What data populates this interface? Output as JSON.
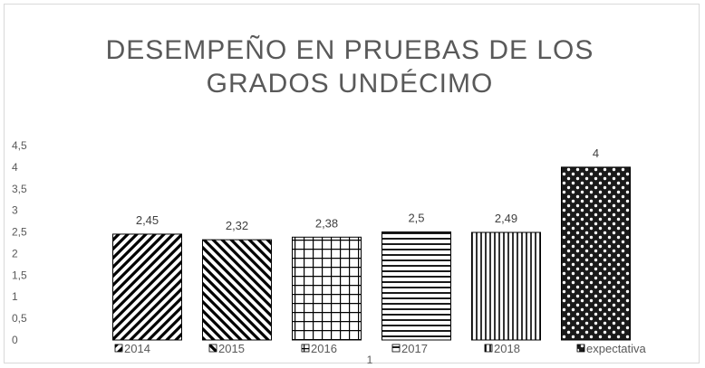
{
  "chart_data": {
    "type": "bar",
    "title_lines": [
      "DESEMPEÑO EN PRUEBAS DE LOS",
      "GRADOS UNDÉCIMO"
    ],
    "categories": [
      "1"
    ],
    "series": [
      {
        "name": "2014",
        "values": [
          2.45
        ],
        "label": "2,45",
        "pattern": "diag-up"
      },
      {
        "name": "2015",
        "values": [
          2.32
        ],
        "label": "2,32",
        "pattern": "diag-down"
      },
      {
        "name": "2016",
        "values": [
          2.38
        ],
        "label": "2,38",
        "pattern": "grid"
      },
      {
        "name": "2017",
        "values": [
          2.5
        ],
        "label": "2,5",
        "pattern": "horizontal"
      },
      {
        "name": "2018",
        "values": [
          2.49
        ],
        "label": "2,49",
        "pattern": "vertical"
      },
      {
        "name": "expectativa",
        "values": [
          4
        ],
        "label": "4",
        "pattern": "dots"
      }
    ],
    "yticks": [
      "0",
      "0,5",
      "1",
      "1,5",
      "2",
      "2,5",
      "3",
      "3,5",
      "4",
      "4,5"
    ],
    "ylim": [
      0,
      4.5
    ],
    "grid": false,
    "legend_position": "bottom",
    "colors": {
      "bar_fill": "#000000",
      "text": "#595959"
    }
  }
}
